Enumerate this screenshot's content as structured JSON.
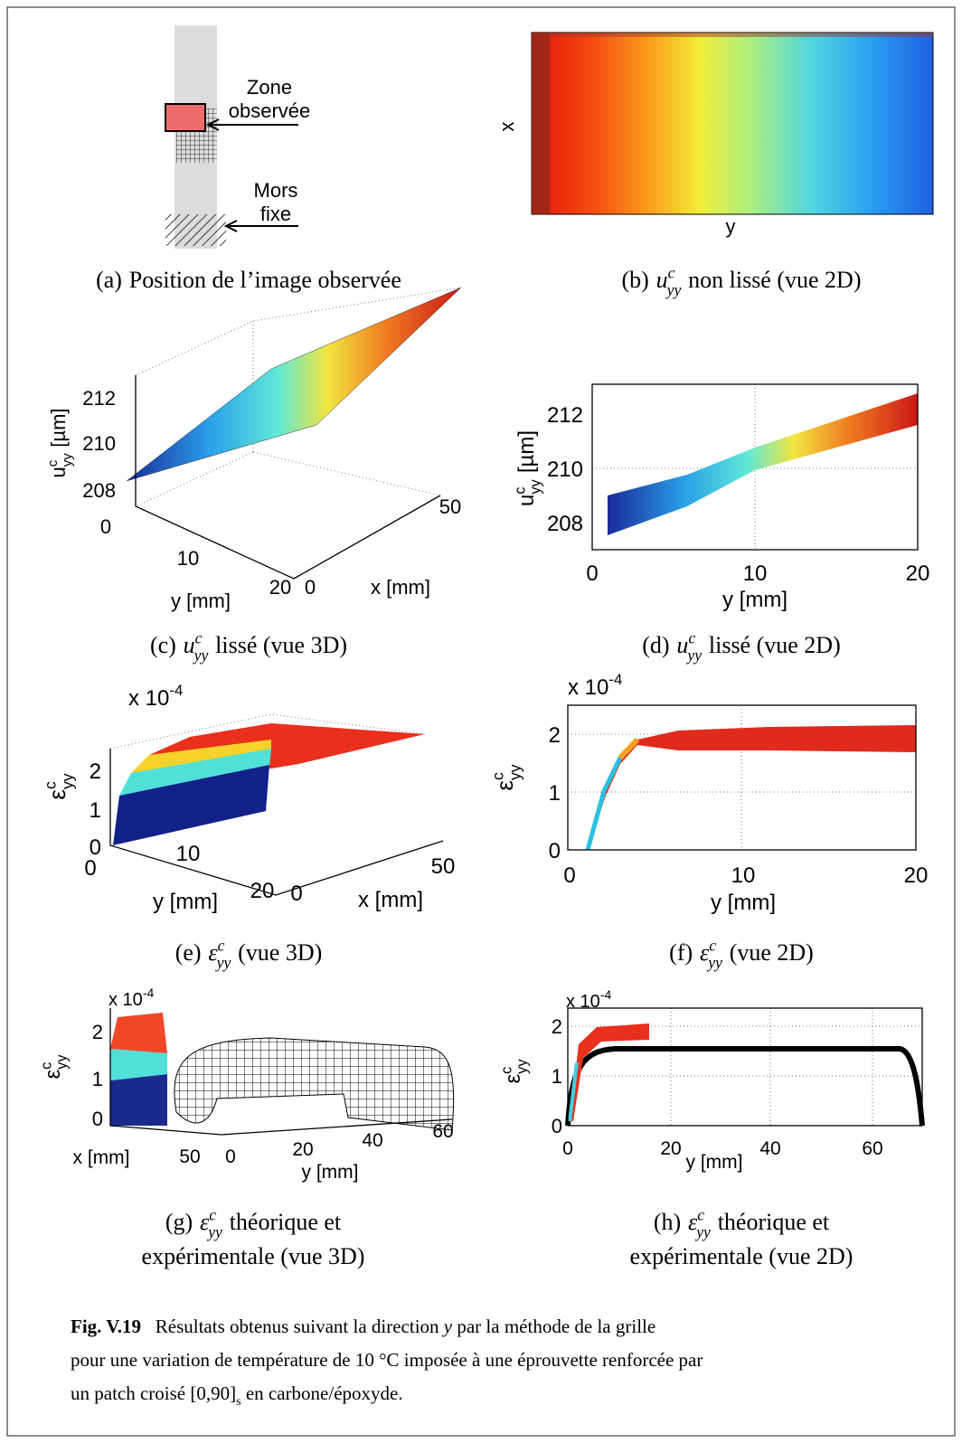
{
  "panel_a": {
    "zone": [
      "Zone",
      "observée"
    ],
    "mors": [
      "Mors",
      "fixe"
    ],
    "caption": {
      "label": "(a)",
      "text": "Position de l’image observée"
    }
  },
  "panel_b": {
    "x_label": "x",
    "y_label": "y",
    "caption": {
      "label": "(b)",
      "sym": "u",
      "sup": "c",
      "sub": "yy",
      "text": "non lissé (vue 2D)"
    }
  },
  "panel_c": {
    "z_label": {
      "sym": "u",
      "sup": "c",
      "sub": "yy",
      "text": "[µm]"
    },
    "z_ticks": [
      "212",
      "210",
      "208"
    ],
    "y_ticks": [
      "0",
      "10",
      "20"
    ],
    "y_axis": "y [mm]",
    "x_ticks": [
      "0",
      "50"
    ],
    "x_axis": "x [mm]",
    "caption": {
      "label": "(c)",
      "sym": "u",
      "sup": "c",
      "sub": "yy",
      "text": "lissé (vue 3D)"
    }
  },
  "panel_d": {
    "y_label": {
      "sym": "u",
      "sup": "c",
      "sub": "yy",
      "text": "[µm]"
    },
    "y_ticks": [
      "212",
      "210",
      "208"
    ],
    "x_ticks": [
      "0",
      "10",
      "20"
    ],
    "x_axis": "y [mm]",
    "caption": {
      "label": "(d)",
      "sym": "u",
      "sup": "c",
      "sub": "yy",
      "text": "lissé (vue 2D)"
    }
  },
  "panel_e": {
    "scale": {
      "base": "x 10",
      "exp": "-4"
    },
    "z_label": {
      "sym": "ε",
      "sup": "c",
      "sub": "yy"
    },
    "z_ticks": [
      "2",
      "1",
      "0"
    ],
    "y_ticks": [
      "0",
      "10",
      "20"
    ],
    "y_axis": "y [mm]",
    "x_ticks": [
      "0",
      "50"
    ],
    "x_axis": "x [mm]",
    "caption": {
      "label": "(e)",
      "sym": "ε",
      "sup": "c",
      "sub": "yy",
      "text": "(vue 3D)"
    }
  },
  "panel_f": {
    "scale": {
      "base": "x 10",
      "exp": "-4"
    },
    "y_label": {
      "sym": "ε",
      "sup": "c",
      "sub": "yy"
    },
    "y_ticks": [
      "2",
      "1",
      "0"
    ],
    "x_ticks": [
      "0",
      "10",
      "20"
    ],
    "x_axis": "y [mm]",
    "caption": {
      "label": "(f)",
      "sym": "ε",
      "sup": "c",
      "sub": "yy",
      "text": "(vue 2D)"
    }
  },
  "panel_g": {
    "scale": {
      "base": "x 10",
      "exp": "-4"
    },
    "z_label": {
      "sym": "ε",
      "sup": "c",
      "sub": "yy"
    },
    "z_ticks": [
      "2",
      "1",
      "0"
    ],
    "x_axis": "x [mm]",
    "x_ticks": [
      "50",
      "0"
    ],
    "y_ticks": [
      "20",
      "40",
      "60"
    ],
    "y_axis": "y [mm]",
    "caption": {
      "label": "(g)",
      "sym": "ε",
      "sup": "c",
      "sub": "yy",
      "text": "théorique et",
      "line2": "expérimentale (vue 3D)"
    }
  },
  "panel_h": {
    "scale": {
      "base": "x 10",
      "exp": "-4"
    },
    "y_label": {
      "sym": "ε",
      "sup": "c",
      "sub": "yy"
    },
    "y_ticks": [
      "2",
      "1",
      "0"
    ],
    "x_ticks": [
      "0",
      "20",
      "40",
      "60"
    ],
    "x_axis": "y [mm]",
    "caption": {
      "label": "(h)",
      "sym": "ε",
      "sup": "c",
      "sub": "yy",
      "text": "théorique et",
      "line2": "expérimentale (vue 2D)"
    }
  },
  "figure_caption": {
    "lines": [
      [
        {
          "t": "Fig. V.19",
          "s": "b"
        },
        {
          "t": "   Résultats obtenus suivant la direction "
        },
        {
          "t": "y",
          "s": "i"
        },
        {
          "t": " par la méthode de la grille"
        }
      ],
      [
        {
          "t": "pour une variation de température de 10 °C imposée à une éprouvette renforcée par"
        }
      ],
      [
        {
          "t": "un patch croisé "
        },
        {
          "t": "[0,90]"
        },
        {
          "t": "s",
          "s": "sub"
        },
        {
          "t": " en carbone/époxyde."
        }
      ]
    ]
  }
}
